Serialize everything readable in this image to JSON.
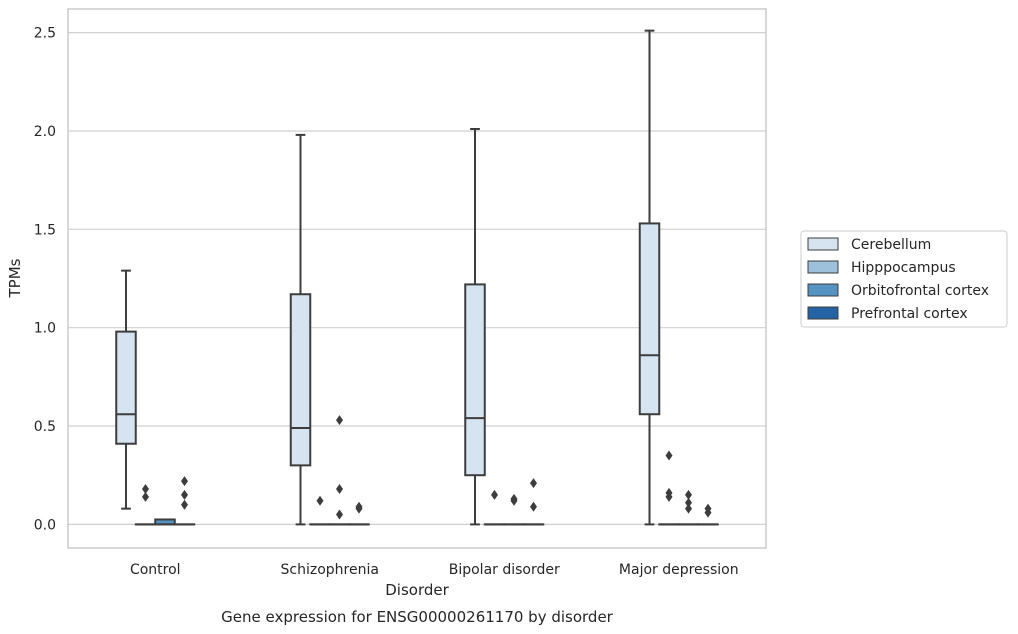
{
  "chart_data": {
    "type": "box",
    "title": "",
    "caption": "Gene expression for ENSG00000261170 by disorder",
    "xlabel": "Disorder",
    "ylabel": "TPMs",
    "ylim": [
      -0.12,
      2.62
    ],
    "yticks": [
      0.0,
      0.5,
      1.0,
      1.5,
      2.0,
      2.5
    ],
    "ytick_labels": [
      "0.0",
      "0.5",
      "1.0",
      "1.5",
      "2.0",
      "2.5"
    ],
    "grid": "horizontal",
    "legend_position": "right",
    "categories": [
      "Control",
      "Schizophrenia",
      "Bipolar disorder",
      "Major depression"
    ],
    "series": [
      {
        "name": "Cerebellum",
        "color": "#d6e3f0",
        "boxes": [
          {
            "whislo": 0.08,
            "q1": 0.41,
            "med": 0.56,
            "q3": 0.98,
            "whishi": 1.29,
            "fliers": []
          },
          {
            "whislo": 0.0,
            "q1": 0.3,
            "med": 0.49,
            "q3": 1.17,
            "whishi": 1.98,
            "fliers": []
          },
          {
            "whislo": 0.0,
            "q1": 0.25,
            "med": 0.54,
            "q3": 1.22,
            "whishi": 2.01,
            "fliers": []
          },
          {
            "whislo": 0.0,
            "q1": 0.56,
            "med": 0.86,
            "q3": 1.53,
            "whishi": 2.51,
            "fliers": []
          }
        ]
      },
      {
        "name": "Hipppocampus",
        "color": "#9dc0db",
        "boxes": [
          {
            "whislo": 0.0,
            "q1": 0.0,
            "med": 0.0,
            "q3": 0.0,
            "whishi": 0.0,
            "fliers": [
              0.14,
              0.18
            ]
          },
          {
            "whislo": 0.0,
            "q1": 0.0,
            "med": 0.0,
            "q3": 0.0,
            "whishi": 0.0,
            "fliers": [
              0.12
            ]
          },
          {
            "whislo": 0.0,
            "q1": 0.0,
            "med": 0.0,
            "q3": 0.0,
            "whishi": 0.0,
            "fliers": [
              0.15
            ]
          },
          {
            "whislo": 0.0,
            "q1": 0.0,
            "med": 0.0,
            "q3": 0.0,
            "whishi": 0.0,
            "fliers": [
              0.14,
              0.16,
              0.35
            ]
          }
        ]
      },
      {
        "name": "Orbitofrontal cortex",
        "color": "#5593c3",
        "boxes": [
          {
            "whislo": 0.0,
            "q1": 0.0,
            "med": 0.0,
            "q3": 0.025,
            "whishi": 0.025,
            "fliers": []
          },
          {
            "whislo": 0.0,
            "q1": 0.0,
            "med": 0.0,
            "q3": 0.0,
            "whishi": 0.0,
            "fliers": [
              0.05,
              0.18,
              0.53
            ]
          },
          {
            "whislo": 0.0,
            "q1": 0.0,
            "med": 0.0,
            "q3": 0.0,
            "whishi": 0.0,
            "fliers": [
              0.12,
              0.13
            ]
          },
          {
            "whislo": 0.0,
            "q1": 0.0,
            "med": 0.0,
            "q3": 0.0,
            "whishi": 0.0,
            "fliers": [
              0.08,
              0.11,
              0.15
            ]
          }
        ]
      },
      {
        "name": "Prefrontal cortex",
        "color": "#2463a4",
        "boxes": [
          {
            "whislo": 0.0,
            "q1": 0.0,
            "med": 0.0,
            "q3": 0.0,
            "whishi": 0.0,
            "fliers": [
              0.1,
              0.15,
              0.22
            ]
          },
          {
            "whislo": 0.0,
            "q1": 0.0,
            "med": 0.0,
            "q3": 0.0,
            "whishi": 0.0,
            "fliers": [
              0.08,
              0.09
            ]
          },
          {
            "whislo": 0.0,
            "q1": 0.0,
            "med": 0.0,
            "q3": 0.0,
            "whishi": 0.0,
            "fliers": [
              0.09,
              0.21
            ]
          },
          {
            "whislo": 0.0,
            "q1": 0.0,
            "med": 0.0,
            "q3": 0.0,
            "whishi": 0.0,
            "fliers": [
              0.06,
              0.08
            ]
          }
        ]
      }
    ]
  },
  "colors": {
    "grid": "#d0d0d0",
    "frame": "#cccccc",
    "box_edge": "#3d3d3d",
    "text": "#262626"
  }
}
